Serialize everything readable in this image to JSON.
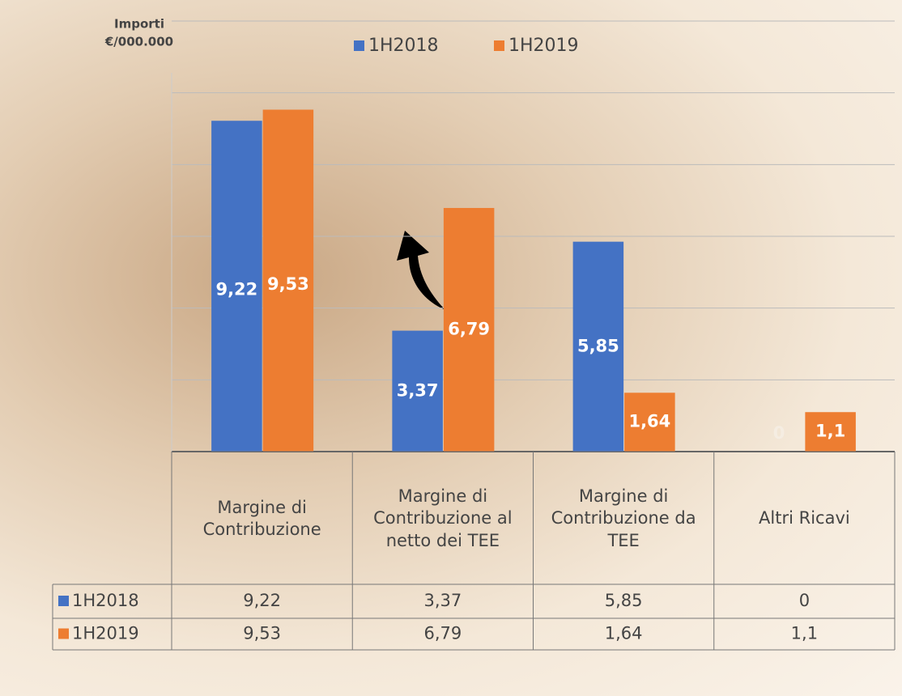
{
  "chart_data": {
    "type": "bar",
    "y_label": "Importi €/000.000",
    "categories": [
      "Margine di Contribuzione",
      "Margine di Contribuzione al netto dei TEE",
      "Margine di Contribuzione da TEE",
      "Altri Ricavi"
    ],
    "series": [
      {
        "name": "1H2018",
        "color": "#4472c4",
        "values": [
          9.22,
          3.37,
          5.85,
          0
        ],
        "value_labels": [
          "9,22",
          "3,37",
          "5,85",
          "0"
        ]
      },
      {
        "name": "1H2019",
        "color": "#ed7d31",
        "values": [
          9.53,
          6.79,
          1.64,
          1.1
        ],
        "value_labels": [
          "9,53",
          "6,79",
          "1,64",
          "1,1"
        ]
      }
    ],
    "ylim": [
      0,
      12
    ],
    "yticks": [
      0,
      2,
      4,
      6,
      8,
      10,
      12
    ],
    "grid": true,
    "legend": "top"
  }
}
